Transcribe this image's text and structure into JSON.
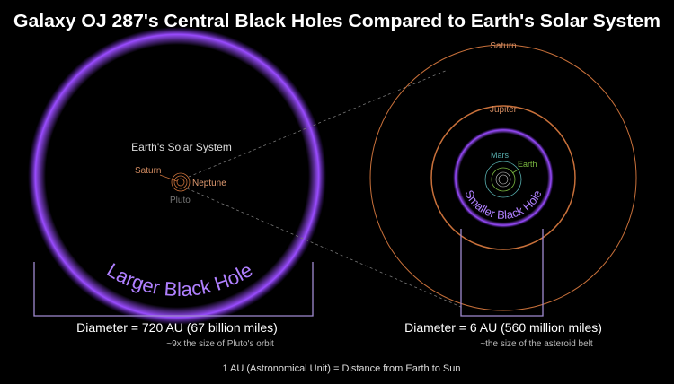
{
  "title": "Galaxy OJ 287's Central Black Holes Compared to Earth's Solar System",
  "large_black_hole": {
    "label": "Larger Black Hole",
    "solar_system_label": "Earth's Solar System",
    "planets": {
      "saturn": "Saturn",
      "neptune": "Neptune",
      "pluto": "Pluto"
    },
    "diameter": "Diameter = 720 AU (67 billion miles)",
    "note": "~9x the size of Pluto's orbit"
  },
  "small_black_hole": {
    "label": "Smaller Black Hole",
    "planets": {
      "saturn": "Saturn",
      "jupiter": "Jupiter",
      "mars": "Mars",
      "earth": "Earth"
    },
    "diameter": "Diameter = 6 AU (560 million miles)",
    "note": "~the size of the asteroid belt"
  },
  "footnote": "1 AU (Astronomical Unit) = Distance from Earth to Sun",
  "colors": {
    "glow": "#8a3cff",
    "orbit_outer": "#c8703a",
    "mars": "#58b0b0",
    "earth": "#7ab840",
    "text": "#ffffff"
  }
}
